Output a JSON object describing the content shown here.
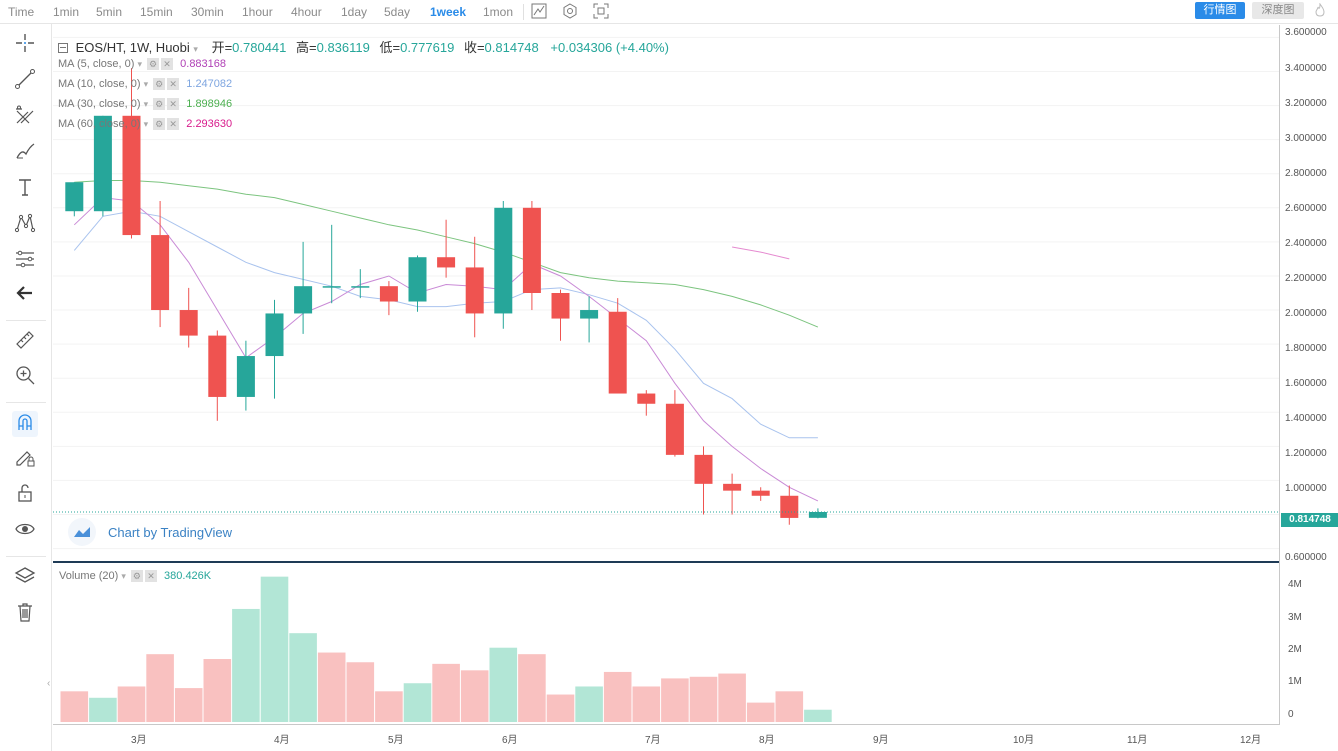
{
  "toolbar": {
    "timeframes": [
      "Time",
      "1min",
      "5min",
      "15min",
      "30min",
      "1hour",
      "4hour",
      "1day",
      "5day",
      "1week",
      "1mon"
    ],
    "active_timeframe": "1week",
    "kline_button": "行情图",
    "depth_button": "深度图"
  },
  "legend": {
    "symbol": "EOS/HT, 1W, Huobi",
    "open_label": "开=",
    "open": "0.780441",
    "high_label": "高=",
    "high": "0.836119",
    "low_label": "低=",
    "low": "0.777619",
    "close_label": "收=",
    "close": "0.814748",
    "change": "+0.034306 (+4.40%)",
    "ma": [
      {
        "label": "MA (5, close, 0)",
        "value": "0.883168",
        "color": "#b041b6"
      },
      {
        "label": "MA (10, close, 0)",
        "value": "1.247082",
        "color": "#7fa6e0"
      },
      {
        "label": "MA (30, close, 0)",
        "value": "1.898946",
        "color": "#4caf50"
      },
      {
        "label": "MA (60, close, 0)",
        "value": "2.293630",
        "color": "#d81b8c"
      }
    ]
  },
  "volume_legend": {
    "label": "Volume (20)",
    "value": "380.426K"
  },
  "tv_badge": "Chart by TradingView",
  "current_price": "0.814748",
  "colors": {
    "up": "#26a69a",
    "down": "#ef5350",
    "up_vol": "#b2e6d6",
    "down_vol": "#f9c1c0",
    "accent": "#2a8be8"
  },
  "chart_data": {
    "type": "candlestick",
    "price_axis": [
      "3.600000",
      "3.400000",
      "3.200000",
      "3.000000",
      "2.800000",
      "2.600000",
      "2.400000",
      "2.200000",
      "2.000000",
      "1.800000",
      "1.600000",
      "1.400000",
      "1.200000",
      "1.000000",
      "0.600000"
    ],
    "volume_axis": [
      "4M",
      "3M",
      "2M",
      "1M",
      "0"
    ],
    "x_labels": [
      "3月",
      "4月",
      "5月",
      "6月",
      "7月",
      "8月",
      "9月",
      "10月",
      "11月",
      "12月"
    ],
    "ylim": [
      0.58,
      3.62
    ],
    "candles": [
      {
        "o": 2.58,
        "h": 2.75,
        "l": 2.55,
        "c": 2.75
      },
      {
        "o": 2.58,
        "h": 3.14,
        "l": 2.55,
        "c": 3.14
      },
      {
        "o": 3.14,
        "h": 3.42,
        "l": 2.42,
        "c": 2.44
      },
      {
        "o": 2.44,
        "h": 2.64,
        "l": 1.9,
        "c": 2.0
      },
      {
        "o": 2.0,
        "h": 2.13,
        "l": 1.78,
        "c": 1.85
      },
      {
        "o": 1.85,
        "h": 1.88,
        "l": 1.35,
        "c": 1.49
      },
      {
        "o": 1.49,
        "h": 1.82,
        "l": 1.41,
        "c": 1.73
      },
      {
        "o": 1.73,
        "h": 2.06,
        "l": 1.48,
        "c": 1.98
      },
      {
        "o": 1.98,
        "h": 2.4,
        "l": 1.86,
        "c": 2.14
      },
      {
        "o": 2.14,
        "h": 2.5,
        "l": 2.04,
        "c": 2.14
      },
      {
        "o": 2.14,
        "h": 2.24,
        "l": 2.07,
        "c": 2.14
      },
      {
        "o": 2.14,
        "h": 2.17,
        "l": 1.97,
        "c": 2.05
      },
      {
        "o": 2.05,
        "h": 2.32,
        "l": 1.99,
        "c": 2.31
      },
      {
        "o": 2.31,
        "h": 2.53,
        "l": 2.19,
        "c": 2.25
      },
      {
        "o": 2.25,
        "h": 2.43,
        "l": 1.84,
        "c": 1.98
      },
      {
        "o": 1.98,
        "h": 2.64,
        "l": 1.89,
        "c": 2.6
      },
      {
        "o": 2.6,
        "h": 2.64,
        "l": 2.0,
        "c": 2.1
      },
      {
        "o": 2.1,
        "h": 2.12,
        "l": 1.82,
        "c": 1.95
      },
      {
        "o": 1.95,
        "h": 2.08,
        "l": 1.81,
        "c": 2.0
      },
      {
        "o": 1.99,
        "h": 2.07,
        "l": 1.52,
        "c": 1.51
      },
      {
        "o": 1.51,
        "h": 1.53,
        "l": 1.38,
        "c": 1.45
      },
      {
        "o": 1.45,
        "h": 1.53,
        "l": 1.14,
        "c": 1.15
      },
      {
        "o": 1.15,
        "h": 1.2,
        "l": 0.8,
        "c": 0.98
      },
      {
        "o": 0.98,
        "h": 1.04,
        "l": 0.8,
        "c": 0.94
      },
      {
        "o": 0.94,
        "h": 0.96,
        "l": 0.88,
        "c": 0.91
      },
      {
        "o": 0.91,
        "h": 0.97,
        "l": 0.74,
        "c": 0.78
      },
      {
        "o": 0.780441,
        "h": 0.836119,
        "l": 0.777619,
        "c": 0.814748
      }
    ],
    "volumes": [
      0.95,
      0.75,
      1.1,
      2.1,
      1.05,
      1.95,
      3.5,
      4.5,
      2.75,
      2.15,
      1.85,
      0.95,
      1.2,
      1.8,
      1.6,
      2.3,
      2.1,
      0.85,
      1.1,
      1.55,
      1.1,
      1.35,
      1.4,
      1.5,
      0.6,
      0.95,
      0.38
    ],
    "volume_up": [
      false,
      true,
      false,
      false,
      false,
      false,
      true,
      true,
      true,
      false,
      false,
      false,
      true,
      false,
      false,
      true,
      false,
      false,
      true,
      false,
      false,
      false,
      false,
      false,
      false,
      false,
      true
    ],
    "ma5": [
      2.5,
      2.66,
      2.64,
      2.5,
      2.28,
      2.0,
      1.72,
      1.84,
      1.98,
      2.05,
      2.15,
      2.2,
      2.1,
      2.15,
      2.14,
      2.12,
      2.27,
      2.2,
      2.08,
      1.95,
      1.82,
      1.57,
      1.35,
      1.2,
      1.07,
      0.96,
      0.88
    ],
    "ma10": [
      2.35,
      2.55,
      2.58,
      2.55,
      2.46,
      2.37,
      2.28,
      2.22,
      2.18,
      2.14,
      2.08,
      2.06,
      2.02,
      2.02,
      2.04,
      2.05,
      2.12,
      2.13,
      2.09,
      2.04,
      1.94,
      1.77,
      1.57,
      1.48,
      1.33,
      1.25,
      1.25
    ],
    "ma30": [
      2.75,
      2.76,
      2.76,
      2.75,
      2.73,
      2.71,
      2.68,
      2.66,
      2.62,
      2.58,
      2.54,
      2.5,
      2.47,
      2.43,
      2.39,
      2.34,
      2.28,
      2.22,
      2.19,
      2.17,
      2.16,
      2.15,
      2.12,
      2.08,
      2.03,
      1.97,
      1.9
    ],
    "ma60": [
      2.37,
      2.34,
      2.3
    ]
  }
}
